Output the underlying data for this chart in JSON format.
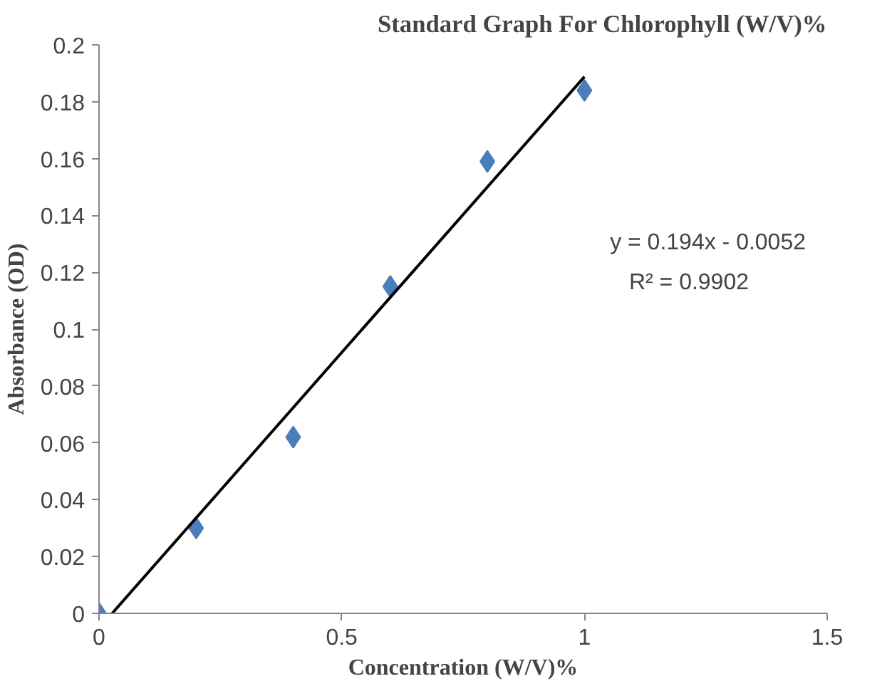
{
  "chart_data": {
    "type": "scatter",
    "title": "Standard Graph For Chlorophyll (W/V)%",
    "xlabel": "Concentration (W/V)%",
    "ylabel": "Absorbance (OD)",
    "x": [
      0,
      0.2,
      0.4,
      0.6,
      0.8,
      1.0
    ],
    "series": [
      {
        "color": "#4a7ebb",
        "marker": "diamond",
        "values": [
          0,
          0.03,
          0.062,
          0.115,
          0.159,
          0.184
        ]
      },
      {
        "type": "line",
        "color": "#000000",
        "x": [
          0.027,
          1.0
        ],
        "values": [
          0,
          0.1888
        ],
        "line_style": "solid"
      }
    ],
    "xlim": [
      0,
      1.5
    ],
    "xticks": [
      0,
      0.5,
      1,
      1.5
    ],
    "ylim": [
      0,
      0.2
    ],
    "yticks": [
      0,
      0.02,
      0.04,
      0.06,
      0.08,
      0.1,
      0.12,
      0.14,
      0.16,
      0.18,
      0.2
    ],
    "grid": false,
    "annotations": [
      "y = 0.194x - 0.0052",
      "R² = 0.9902"
    ]
  }
}
